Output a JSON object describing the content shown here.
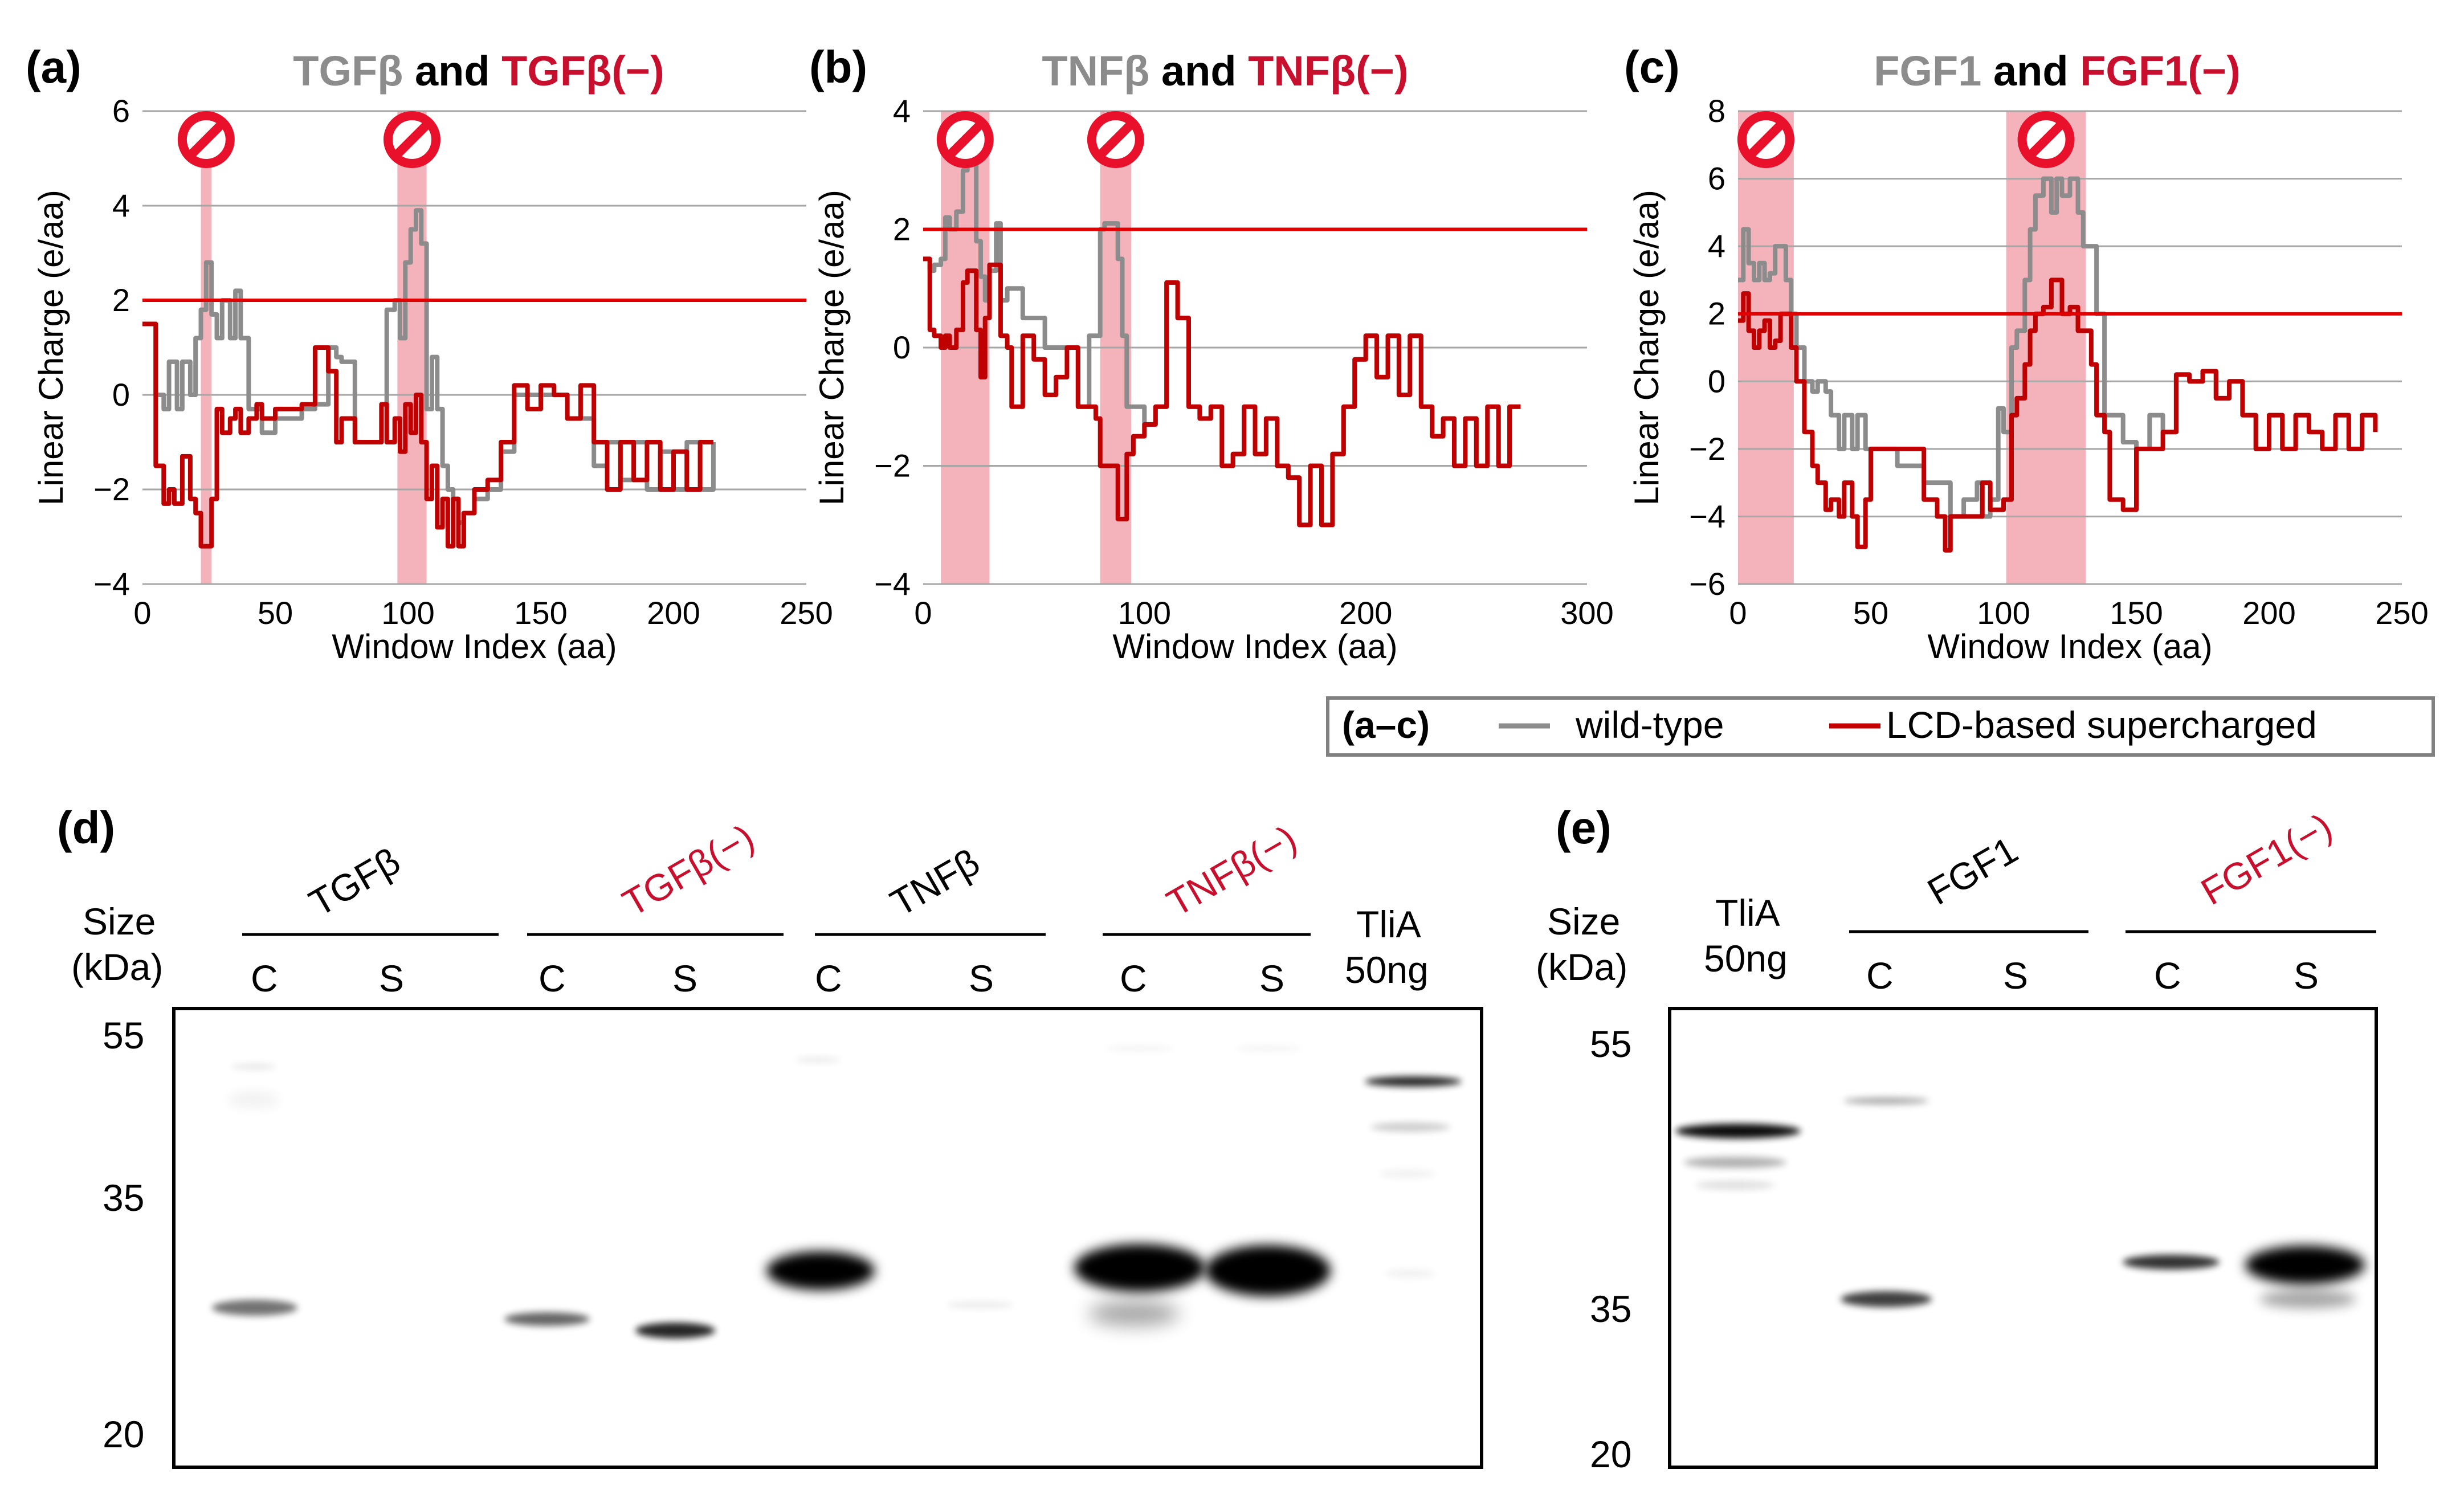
{
  "colors": {
    "wild_type": "#8c8c8c",
    "supercharged": "#c00000",
    "threshold": "#e00000",
    "highlight": "#f4b3bb",
    "grid": "#a6a6a6",
    "gray_text": "#8c8c8c",
    "red_text": "#c8102e"
  },
  "icons": {
    "region_marker": "prohibited-icon"
  },
  "legend": {
    "prefix": "(a–c)",
    "wild_type": "wild-type",
    "supercharged": "LCD-based supercharged"
  },
  "chart_data": [
    {
      "type": "line",
      "panel": "(a)",
      "title_wt": "TGFβ",
      "title_and": " and ",
      "title_sc": "TGFβ(−)",
      "xlabel": "Window Index (aa)",
      "ylabel": "Linear Charge (e/aa)",
      "xlim": [
        0,
        250
      ],
      "ylim": [
        -4,
        6
      ],
      "xticks": [
        0,
        50,
        100,
        150,
        200,
        250
      ],
      "yticks": [
        -4,
        -2,
        0,
        2,
        4,
        6
      ],
      "grid": true,
      "threshold": 2,
      "highlights": [
        [
          22,
          26
        ],
        [
          96,
          107
        ]
      ],
      "series": [
        {
          "key": "wt",
          "x": [
            0,
            3,
            5,
            8,
            10,
            13,
            15,
            18,
            20,
            22,
            24,
            26,
            28,
            30,
            33,
            35,
            37,
            40,
            45,
            50,
            55,
            60,
            65,
            70,
            73,
            75,
            80,
            85,
            90,
            92,
            95,
            97,
            99,
            101,
            103,
            105,
            107,
            109,
            111,
            113,
            115,
            117,
            119,
            121,
            125,
            130,
            135,
            140,
            145,
            150,
            155,
            160,
            165,
            170,
            175,
            180,
            185,
            190,
            195,
            200,
            205,
            210,
            215
          ],
          "y": [
            1.5,
            1.5,
            0,
            -0.3,
            0.7,
            -0.3,
            0.7,
            0,
            1.2,
            1.8,
            2.8,
            1.7,
            1.2,
            2.0,
            1.2,
            2.2,
            1.2,
            -0.3,
            -0.8,
            -0.5,
            -0.5,
            -0.3,
            -0.2,
            1.0,
            0.8,
            0.7,
            -1.0,
            -1.0,
            -0.2,
            1.8,
            2.0,
            1.2,
            2.8,
            3.5,
            3.9,
            3.2,
            -0.3,
            0.8,
            -0.3,
            -1.5,
            -2.0,
            -2.2,
            -2.7,
            -2.5,
            -2.2,
            -2.0,
            -1.2,
            0,
            0,
            0,
            0,
            -0.5,
            -0.5,
            -1.5,
            -1.0,
            -1.8,
            -1.0,
            -2.0,
            -1.2,
            -2.0,
            -1.0,
            -2.0,
            -1.0
          ]
        },
        {
          "key": "sc",
          "x": [
            0,
            3,
            5,
            8,
            10,
            12,
            15,
            18,
            20,
            22,
            24,
            26,
            28,
            30,
            33,
            35,
            37,
            40,
            43,
            45,
            50,
            55,
            60,
            65,
            70,
            73,
            75,
            80,
            85,
            90,
            92,
            95,
            97,
            99,
            101,
            103,
            105,
            107,
            109,
            111,
            113,
            115,
            117,
            119,
            121,
            125,
            130,
            135,
            140,
            145,
            150,
            155,
            160,
            165,
            170,
            175,
            180,
            185,
            190,
            195,
            200,
            205,
            210,
            215
          ],
          "y": [
            1.5,
            1.5,
            -1.5,
            -2.3,
            -2.0,
            -2.3,
            -1.3,
            -2.2,
            -2.5,
            -3.2,
            -3.2,
            -2.2,
            -0.3,
            -0.8,
            -0.5,
            -0.3,
            -0.8,
            -0.5,
            -0.2,
            -0.5,
            -0.3,
            -0.3,
            -0.2,
            1.0,
            0.5,
            -1.0,
            -0.5,
            -1.0,
            -1.0,
            -0.2,
            -1.0,
            -0.5,
            -1.2,
            -0.2,
            -0.8,
            0,
            -1.0,
            -2.2,
            -1.5,
            -2.8,
            -2.2,
            -3.2,
            -2.2,
            -3.2,
            -2.5,
            -2.0,
            -1.8,
            -1.0,
            0.2,
            -0.3,
            0.2,
            0,
            -0.5,
            0.2,
            -1.0,
            -2.0,
            -1.0,
            -1.8,
            -1.0,
            -2.0,
            -1.2,
            -2.0,
            -1.0,
            -1.0
          ]
        }
      ]
    },
    {
      "type": "line",
      "panel": "(b)",
      "title_wt": "TNFβ",
      "title_and": " and ",
      "title_sc": "TNFβ(−)",
      "xlabel": "Window Index (aa)",
      "ylabel": "Linear Charge (e/aa)",
      "xlim": [
        0,
        300
      ],
      "ylim": [
        -4,
        4
      ],
      "xticks": [
        0,
        100,
        200,
        300
      ],
      "yticks": [
        -4,
        -2,
        0,
        2,
        4
      ],
      "grid": true,
      "threshold": 2,
      "highlights": [
        [
          8,
          30
        ],
        [
          80,
          94
        ]
      ],
      "series": [
        {
          "key": "wt",
          "x": [
            0,
            3,
            5,
            8,
            10,
            12,
            15,
            18,
            20,
            22,
            24,
            26,
            28,
            30,
            33,
            35,
            38,
            40,
            45,
            50,
            55,
            60,
            65,
            70,
            75,
            78,
            80,
            82,
            85,
            88,
            90,
            92,
            95,
            100,
            105,
            110,
            115,
            120,
            125,
            130,
            135,
            140,
            145,
            150,
            155,
            160,
            165,
            170,
            175,
            180,
            185,
            190,
            195,
            200,
            205,
            210,
            215,
            220,
            225,
            230,
            235,
            240,
            245,
            250,
            255,
            260,
            265,
            270
          ],
          "y": [
            1.5,
            1.3,
            1.4,
            1.5,
            2.2,
            2.0,
            2.3,
            3.0,
            3.4,
            3.4,
            1.8,
            1.2,
            0.8,
            1.3,
            2.1,
            0.8,
            1.0,
            1.0,
            0.5,
            0.5,
            0,
            0,
            0,
            -1.0,
            0.2,
            0.2,
            2.0,
            2.1,
            2.1,
            1.5,
            0.2,
            -1.0,
            -1.0,
            -1.3,
            -1.0,
            1.1,
            0.5,
            -1.0,
            -1.2,
            -1.0,
            -2.0,
            -1.8,
            -1.0,
            -1.8,
            -1.2,
            -2.0,
            -2.2,
            -3.0,
            -2.0,
            -3.0,
            -1.8,
            -1.0,
            -0.2,
            0.2,
            -0.5,
            0.2,
            -0.8,
            0.2,
            -1.0,
            -1.5,
            -1.2,
            -2.0,
            -1.2,
            -2.0,
            -1.0,
            -2.0,
            -1.0,
            -1.0
          ]
        },
        {
          "key": "sc",
          "x": [
            0,
            3,
            5,
            8,
            10,
            12,
            15,
            18,
            20,
            22,
            24,
            26,
            28,
            30,
            35,
            38,
            40,
            45,
            50,
            55,
            60,
            65,
            70,
            75,
            78,
            80,
            82,
            85,
            88,
            90,
            92,
            95,
            100,
            105,
            110,
            115,
            120,
            125,
            130,
            135,
            140,
            145,
            150,
            155,
            160,
            165,
            170,
            175,
            180,
            185,
            190,
            195,
            200,
            205,
            210,
            215,
            220,
            225,
            230,
            235,
            240,
            245,
            250,
            255,
            260,
            265,
            270
          ],
          "y": [
            1.5,
            0.3,
            0.2,
            0,
            0.2,
            0,
            0.3,
            1.1,
            1.3,
            1.3,
            0.3,
            -0.5,
            0.5,
            1.4,
            0.2,
            0,
            -1.0,
            0.2,
            -0.2,
            -0.8,
            -0.5,
            0,
            -1.0,
            -1.0,
            -1.2,
            -2.0,
            -2.0,
            -2.0,
            -2.9,
            -2.9,
            -1.8,
            -1.5,
            -1.3,
            -1.0,
            1.1,
            0.5,
            -1.0,
            -1.2,
            -1.0,
            -2.0,
            -1.8,
            -1.0,
            -1.8,
            -1.2,
            -2.0,
            -2.2,
            -3.0,
            -2.0,
            -3.0,
            -1.8,
            -1.0,
            -0.2,
            0.2,
            -0.5,
            0.2,
            -0.8,
            0.2,
            -1.0,
            -1.5,
            -1.2,
            -2.0,
            -1.2,
            -2.0,
            -1.0,
            -2.0,
            -1.0,
            -1.0
          ]
        }
      ]
    },
    {
      "type": "line",
      "panel": "(c)",
      "title_wt": "FGF1",
      "title_and": " and ",
      "title_sc": "FGF1(−)",
      "xlabel": "Window Index (aa)",
      "ylabel": "Linear Charge (e/aa)",
      "xlim": [
        0,
        250
      ],
      "ylim": [
        -6,
        8
      ],
      "xticks": [
        0,
        50,
        100,
        150,
        200,
        250
      ],
      "yticks": [
        -6,
        -4,
        -2,
        0,
        2,
        4,
        6,
        8
      ],
      "grid": true,
      "threshold": 2,
      "highlights": [
        [
          0,
          21
        ],
        [
          101,
          131
        ]
      ],
      "series": [
        {
          "key": "wt",
          "x": [
            0,
            2,
            4,
            6,
            8,
            10,
            12,
            14,
            16,
            18,
            20,
            22,
            25,
            28,
            30,
            33,
            35,
            38,
            40,
            43,
            45,
            48,
            50,
            55,
            60,
            65,
            70,
            75,
            80,
            85,
            90,
            92,
            95,
            98,
            100,
            103,
            105,
            108,
            110,
            112,
            115,
            118,
            120,
            122,
            125,
            128,
            130,
            133,
            135,
            138,
            140,
            145,
            150,
            155,
            160,
            165,
            170,
            175,
            180,
            185,
            190,
            195,
            200,
            205,
            210,
            215,
            220,
            225,
            230,
            235,
            240
          ],
          "y": [
            3.0,
            4.5,
            3.5,
            3.0,
            3.5,
            3.0,
            3.2,
            4.0,
            4.0,
            3.0,
            2.0,
            1.0,
            0,
            -0.3,
            0,
            -0.3,
            -1.0,
            -2.0,
            -1.0,
            -2.0,
            -1.0,
            -2.0,
            -2.0,
            -2.0,
            -2.5,
            -2.5,
            -3.0,
            -3.0,
            -4.0,
            -3.5,
            -3.0,
            -4.0,
            -3.5,
            -0.8,
            -1.5,
            1.0,
            1.5,
            3.0,
            4.5,
            5.5,
            6.0,
            5.0,
            6.0,
            5.5,
            6.0,
            5.0,
            4.0,
            4.0,
            2.0,
            -1.0,
            -1.0,
            -1.8,
            -2.0,
            -1.0,
            -1.5,
            0.2,
            0,
            0.3,
            -0.5,
            0,
            -1.0,
            -2.0,
            -1.0,
            -2.0,
            -1.0,
            -1.5,
            -2.0,
            -1.0,
            -2.0,
            -1.0,
            -1.5
          ]
        },
        {
          "key": "sc",
          "x": [
            0,
            2,
            4,
            6,
            8,
            10,
            12,
            14,
            16,
            18,
            20,
            22,
            25,
            28,
            30,
            33,
            35,
            38,
            40,
            43,
            45,
            48,
            50,
            55,
            60,
            65,
            70,
            75,
            78,
            80,
            85,
            90,
            92,
            95,
            98,
            100,
            103,
            105,
            108,
            110,
            112,
            115,
            118,
            120,
            122,
            125,
            128,
            130,
            133,
            135,
            138,
            140,
            145,
            150,
            155,
            160,
            165,
            170,
            175,
            180,
            185,
            190,
            195,
            200,
            205,
            210,
            215,
            220,
            225,
            230,
            235,
            240
          ],
          "y": [
            1.8,
            2.6,
            1.5,
            1.0,
            1.5,
            1.8,
            1.0,
            1.2,
            2.0,
            2.0,
            1.0,
            0,
            -1.5,
            -2.5,
            -3.0,
            -3.8,
            -3.5,
            -4.0,
            -3.0,
            -4.0,
            -4.9,
            -3.5,
            -2.0,
            -2.0,
            -2.0,
            -2.0,
            -3.5,
            -4.0,
            -5.0,
            -4.0,
            -4.0,
            -4.0,
            -3.0,
            -3.8,
            -3.8,
            -3.5,
            -1.0,
            -0.5,
            0.5,
            1.5,
            2.0,
            2.2,
            3.0,
            3.0,
            2.0,
            2.2,
            1.5,
            1.5,
            0.5,
            -1.0,
            -1.5,
            -3.5,
            -3.8,
            -2.0,
            -2.0,
            -1.5,
            0.2,
            0,
            0.3,
            -0.5,
            0,
            -1.0,
            -2.0,
            -1.0,
            -2.0,
            -1.0,
            -1.5,
            -2.0,
            -1.0,
            -2.0,
            -1.0,
            -1.5
          ]
        }
      ]
    }
  ],
  "blot_d": {
    "panel": "(d)",
    "size_label": "Size",
    "size_unit": "(kDa)",
    "markers": [
      "55",
      "35",
      "20"
    ],
    "groups": [
      {
        "name": "TGFβ",
        "color": "#000000",
        "lanes": [
          "C",
          "S"
        ]
      },
      {
        "name": "TGFβ(−)",
        "color": "#c8102e",
        "lanes": [
          "C",
          "S"
        ]
      },
      {
        "name": "TNFβ",
        "color": "#000000",
        "lanes": [
          "C",
          "S"
        ]
      },
      {
        "name": "TNFβ(−)",
        "color": "#c8102e",
        "lanes": [
          "C",
          "S"
        ]
      }
    ],
    "ref_lane": [
      "TliA",
      "50ng"
    ]
  },
  "blot_e": {
    "panel": "(e)",
    "size_label": "Size",
    "size_unit": "(kDa)",
    "markers": [
      "55",
      "35",
      "20"
    ],
    "ref_lane": [
      "TliA",
      "50ng"
    ],
    "groups": [
      {
        "name": "FGF1",
        "color": "#000000",
        "lanes": [
          "C",
          "S"
        ]
      },
      {
        "name": "FGF1(−)",
        "color": "#c8102e",
        "lanes": [
          "C",
          "S"
        ]
      }
    ]
  }
}
